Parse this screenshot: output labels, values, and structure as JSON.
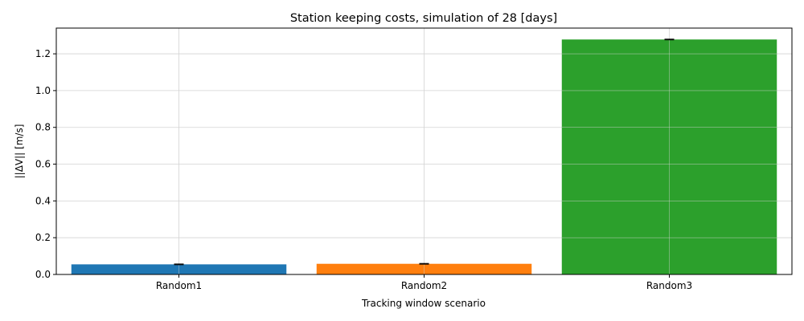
{
  "chart_data": {
    "type": "bar",
    "title": "Station keeping costs, simulation of 28 [days]",
    "xlabel": "Tracking window scenario",
    "ylabel": "||ΔV|| [m/s]",
    "categories": [
      "Random1",
      "Random2",
      "Random3"
    ],
    "values": [
      0.055,
      0.058,
      1.278
    ],
    "error": [
      0.002,
      0.002,
      0.002
    ],
    "colors": [
      "#1f77b4",
      "#ff7f0e",
      "#2ca02c"
    ],
    "ylim": [
      0,
      1.34
    ],
    "yticks": [
      0.0,
      0.2,
      0.4,
      0.6,
      0.8,
      1.0,
      1.2
    ],
    "ytick_labels": [
      "0.0",
      "0.2",
      "0.4",
      "0.6",
      "0.8",
      "1.0",
      "1.2"
    ],
    "grid": true,
    "legend": "none"
  }
}
